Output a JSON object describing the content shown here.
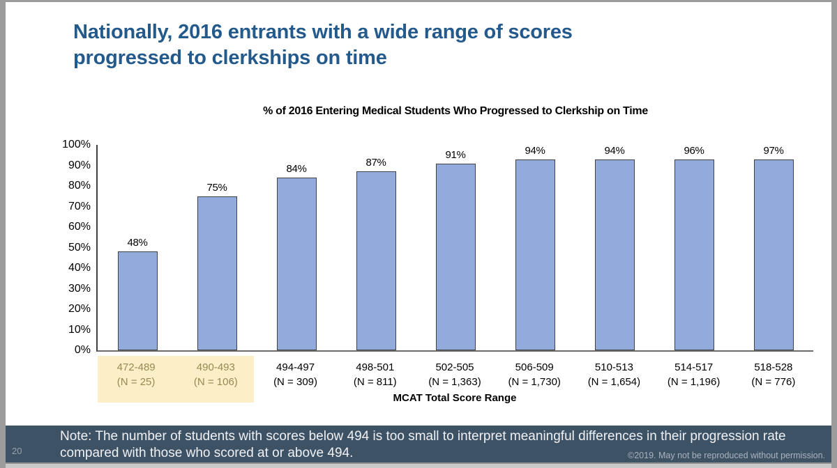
{
  "slide": {
    "title_lines": [
      "Nationally, 2016 entrants with a wide range of scores",
      "progressed to clerkships on time"
    ],
    "page_number": "20",
    "note": "Note: The number of students with scores below 494 is too small to interpret meaningful differences in their progression rate compared with those who scored at or above 494.",
    "copyright": "©2019. May not be reproduced without permission."
  },
  "chart_data": {
    "type": "bar",
    "title": "% of 2016 Entering Medical Students Who Progressed to Clerkship on Time",
    "xlabel": "MCAT Total Score Range",
    "ylabel": "",
    "ylim": [
      0,
      100
    ],
    "yticks": [
      "0%",
      "10%",
      "20%",
      "30%",
      "40%",
      "50%",
      "60%",
      "70%",
      "80%",
      "90%",
      "100%"
    ],
    "categories": [
      "472-489",
      "490-493",
      "494-497",
      "498-501",
      "502-505",
      "506-509",
      "510-513",
      "514-517",
      "518-528"
    ],
    "n_labels": [
      "(N = 25)",
      "(N = 106)",
      "(N = 309)",
      "(N = 811)",
      "(N = 1,363)",
      "(N = 1,730)",
      "(N = 1,654)",
      "(N = 1,196)",
      "(N = 776)"
    ],
    "values": [
      48,
      75,
      84,
      87,
      91,
      94,
      94,
      96,
      97
    ],
    "value_labels": [
      "48%",
      "75%",
      "84%",
      "87%",
      "91%",
      "94%",
      "94%",
      "96%",
      "97%"
    ],
    "highlighted_categories": [
      0,
      1
    ],
    "grid": false,
    "legend": false
  },
  "colors": {
    "title_blue": "#235A8B",
    "bar_fill": "#92AADC",
    "bar_border": "#404040",
    "highlight_bg": "#FCEFC7",
    "highlight_text": "#948A54",
    "footer_bg": "#3E5266",
    "footer_text": "#EFF1F4"
  }
}
